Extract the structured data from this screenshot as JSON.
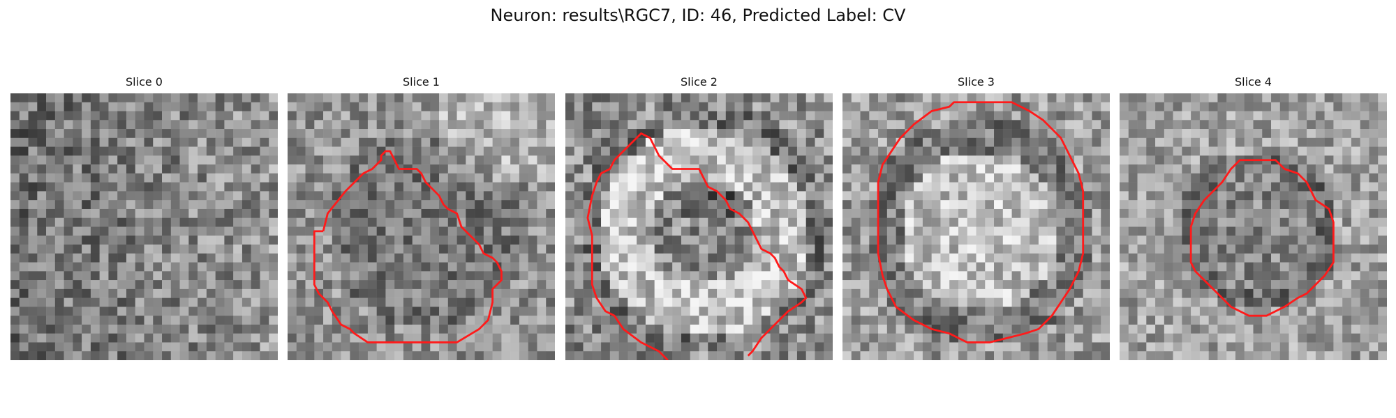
{
  "figure": {
    "title": "Neuron: results\\RGC7, ID: 46, Predicted Label: CV"
  },
  "panels": [
    {
      "title": "Slice 0",
      "has_contour": false,
      "base": 120,
      "contrast": 90,
      "seed": 11
    },
    {
      "title": "Slice 1",
      "has_contour": true,
      "base": 135,
      "contrast": 80,
      "seed": 23
    },
    {
      "title": "Slice 2",
      "has_contour": true,
      "base": 150,
      "contrast": 95,
      "seed": 37
    },
    {
      "title": "Slice 3",
      "has_contour": true,
      "base": 155,
      "contrast": 85,
      "seed": 41
    },
    {
      "title": "Slice 4",
      "has_contour": true,
      "base": 145,
      "contrast": 80,
      "seed": 53
    }
  ],
  "colors": {
    "contour": "#ff1a1a"
  }
}
